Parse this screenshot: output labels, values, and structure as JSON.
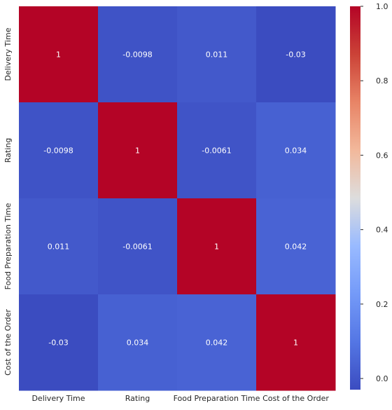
{
  "chart_data": {
    "type": "heatmap",
    "rows": [
      "Delivery Time",
      "Rating",
      "Food Preparation Time",
      "Cost of the Order"
    ],
    "cols": [
      "Delivery Time",
      "Rating",
      "Food Preparation Time",
      "Cost of the Order"
    ],
    "values": [
      [
        1,
        -0.0098,
        0.011,
        -0.03
      ],
      [
        -0.0098,
        1,
        -0.0061,
        0.034
      ],
      [
        0.011,
        -0.0061,
        1,
        0.042
      ],
      [
        -0.03,
        0.034,
        0.042,
        1
      ]
    ],
    "value_labels": [
      [
        "1",
        "-0.0098",
        "0.011",
        "-0.03"
      ],
      [
        "-0.0098",
        "1",
        "-0.0061",
        "0.034"
      ],
      [
        "0.011",
        "-0.0061",
        "1",
        "0.042"
      ],
      [
        "-0.03",
        "0.034",
        "0.042",
        "1"
      ]
    ],
    "colormap": "coolwarm",
    "colorbar": {
      "range": [
        -0.03,
        1.0
      ],
      "ticks": [
        0.0,
        0.2,
        0.4,
        0.6,
        0.8,
        1.0
      ],
      "tick_labels": [
        "0.0",
        "0.2",
        "0.4",
        "0.6",
        "0.8",
        "1.0"
      ]
    }
  }
}
